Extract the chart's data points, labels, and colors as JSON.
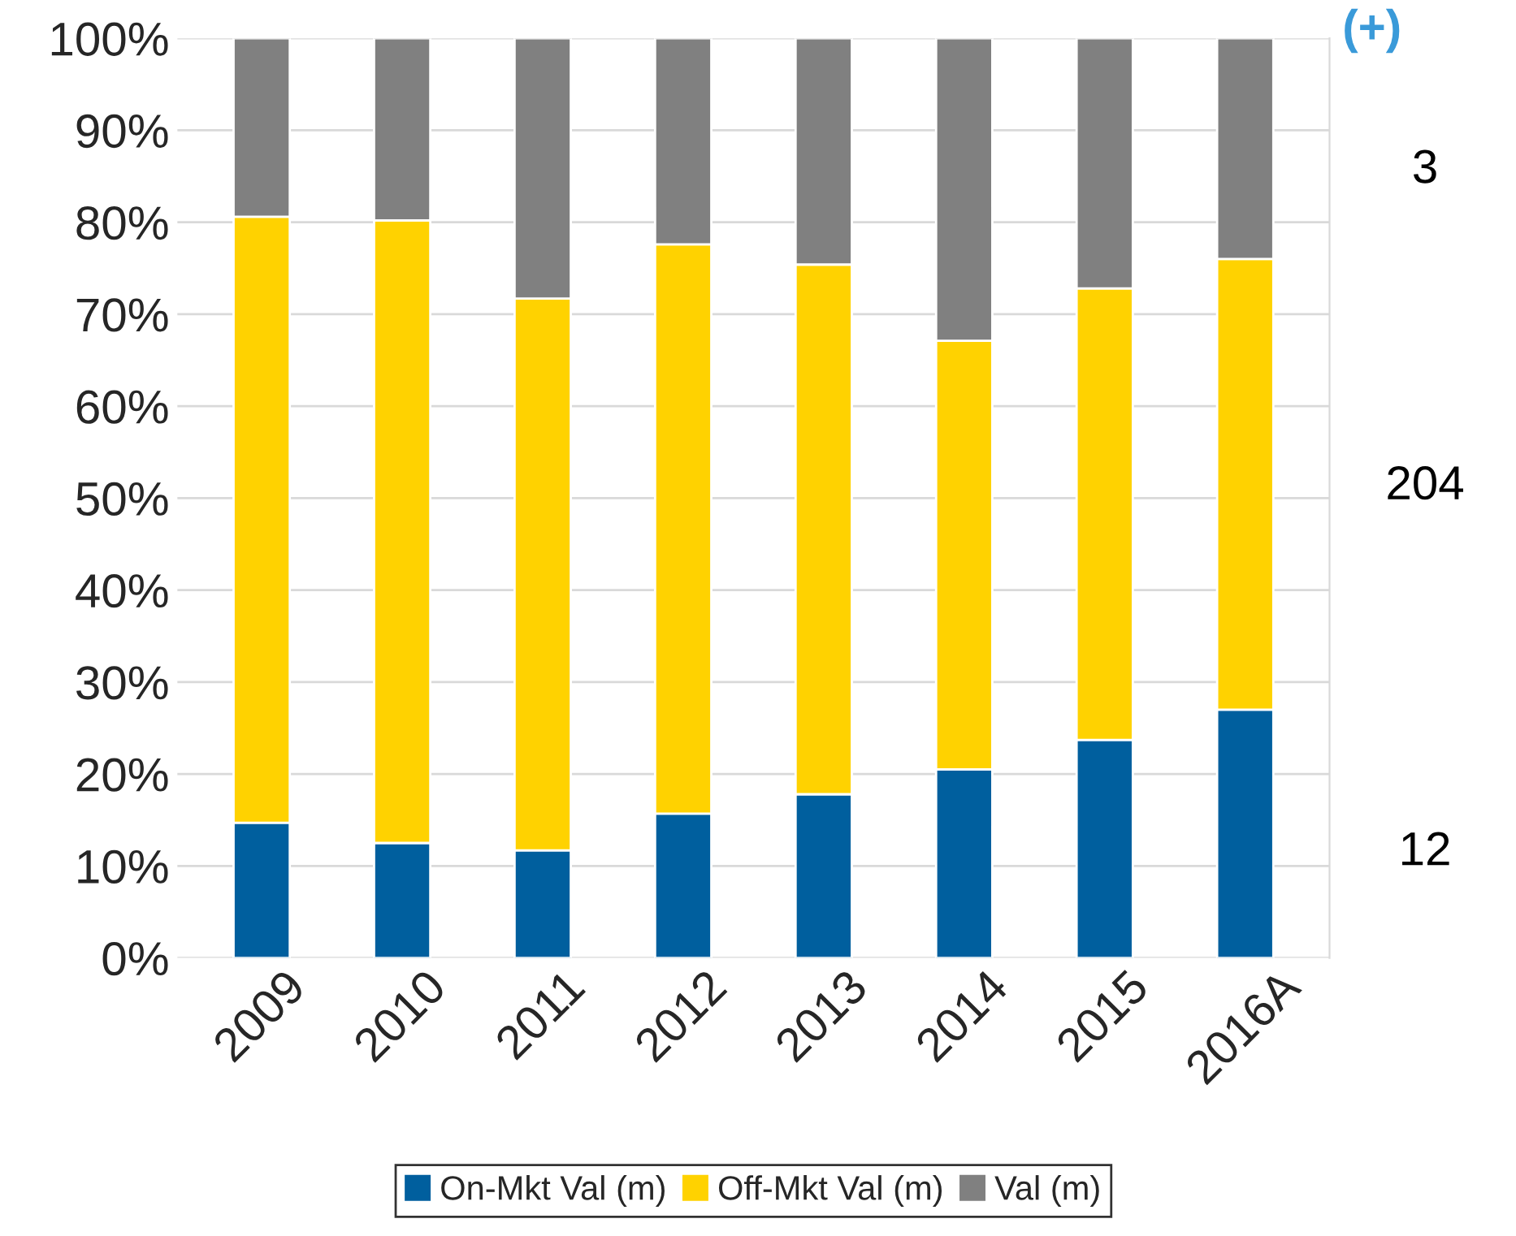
{
  "chart_data": {
    "type": "bar",
    "stacked": true,
    "categories": [
      "2009",
      "2010",
      "2011",
      "2012",
      "2013",
      "2014",
      "2015",
      "2016A"
    ],
    "series": [
      {
        "name": "On-Mkt Val (m)",
        "color": "#005f9e",
        "values": [
          14.7,
          12.5,
          11.7,
          15.7,
          17.8,
          20.5,
          23.7,
          27.0
        ]
      },
      {
        "name": "Off-Mkt Val (m)",
        "color": "#ffd200",
        "values": [
          65.9,
          67.7,
          60.0,
          61.9,
          57.6,
          46.6,
          49.1,
          49.0
        ]
      },
      {
        "name": "Val (m)",
        "color": "#808080",
        "values": [
          19.4,
          19.8,
          28.3,
          22.4,
          24.6,
          32.9,
          27.2,
          24.0
        ]
      }
    ],
    "ylim": [
      0,
      100
    ],
    "yticks": [
      {
        "value": 0,
        "label": "0%"
      },
      {
        "value": 10,
        "label": "10%"
      },
      {
        "value": 20,
        "label": "20%"
      },
      {
        "value": 30,
        "label": "30%"
      },
      {
        "value": 40,
        "label": "40%"
      },
      {
        "value": 50,
        "label": "50%"
      },
      {
        "value": 60,
        "label": "60%"
      },
      {
        "value": 70,
        "label": "70%"
      },
      {
        "value": 80,
        "label": "80%"
      },
      {
        "value": 90,
        "label": "90%"
      },
      {
        "value": 100,
        "label": "100%"
      }
    ],
    "grid": "y",
    "legend": "bottom",
    "annotations": [
      "(+)",
      "3",
      "204",
      "12"
    ]
  }
}
